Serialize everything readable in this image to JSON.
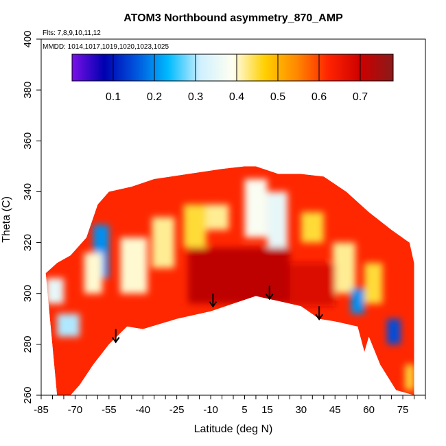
{
  "chart_data": {
    "type": "heatmap",
    "title": "ATOM3 Northbound asymmetry_870_AMP",
    "annotation_lines": [
      "Flts: 7,8,9,10,11,12",
      "MMDD: 1014,1017,1019,1020,1023,1025"
    ],
    "xlabel": "Latitude (deg N)",
    "ylabel": "Theta (C)",
    "xlim": [
      -85,
      85
    ],
    "ylim": [
      260,
      400
    ],
    "x_tick_labels": [
      "-85",
      "-70",
      "-55",
      "-40",
      "-25",
      "-10",
      "5",
      "15",
      "30",
      "45",
      "60",
      "75"
    ],
    "x_tick_values": [
      -85,
      -70,
      -55,
      -40,
      -25,
      -10,
      5,
      15,
      30,
      45,
      60,
      75
    ],
    "y_tick_values": [
      260,
      280,
      300,
      320,
      340,
      360,
      380,
      400
    ],
    "y_tick_labels": [
      "260",
      "280",
      "300",
      "320",
      "340",
      "360",
      "380",
      "400"
    ],
    "colorbar": {
      "range": [
        0.0,
        0.78
      ],
      "tick_values": [
        0.1,
        0.2,
        0.3,
        0.4,
        0.5,
        0.6,
        0.7
      ],
      "tick_labels": [
        "0.1",
        "0.2",
        "0.3",
        "0.4",
        "0.5",
        "0.6",
        "0.7"
      ],
      "colors": [
        "#7a10e8",
        "#0000b0",
        "#0055dd",
        "#00bbff",
        "#d0f0ff",
        "#fffff0",
        "#ffd000",
        "#ff8800",
        "#ff2200",
        "#cc0000",
        "#8b1a1a"
      ]
    },
    "upper_boundary": [
      [
        -83,
        308
      ],
      [
        -78,
        312
      ],
      [
        -72,
        315
      ],
      [
        -65,
        322
      ],
      [
        -60,
        335
      ],
      [
        -55,
        340
      ],
      [
        -45,
        342
      ],
      [
        -35,
        345
      ],
      [
        -20,
        347
      ],
      [
        -5,
        349
      ],
      [
        5,
        350
      ],
      [
        10,
        350
      ],
      [
        20,
        347
      ],
      [
        30,
        347
      ],
      [
        40,
        346
      ],
      [
        50,
        340
      ],
      [
        60,
        332
      ],
      [
        70,
        325
      ],
      [
        78,
        320
      ],
      [
        80,
        312
      ]
    ],
    "lower_boundary": [
      [
        80,
        260
      ],
      [
        72,
        262
      ],
      [
        65,
        272
      ],
      [
        60,
        283
      ],
      [
        58,
        277
      ],
      [
        55,
        287
      ],
      [
        45,
        289
      ],
      [
        38,
        290
      ],
      [
        30,
        295
      ],
      [
        20,
        297
      ],
      [
        10,
        299
      ],
      [
        0,
        296
      ],
      [
        -10,
        293
      ],
      [
        -25,
        290
      ],
      [
        -40,
        286
      ],
      [
        -47,
        287
      ],
      [
        -55,
        280
      ],
      [
        -62,
        272
      ],
      [
        -68,
        264
      ],
      [
        -72,
        260
      ],
      [
        -78,
        260
      ]
    ],
    "regions": [
      {
        "x": [
          -83,
          -75
        ],
        "y": [
          296,
          306
        ],
        "value": 0.35
      },
      {
        "x": [
          -78,
          -68
        ],
        "y": [
          283,
          292
        ],
        "value": 0.3
      },
      {
        "x": [
          -62,
          -55
        ],
        "y": [
          306,
          327
        ],
        "value": 0.2
      },
      {
        "x": [
          -66,
          -58
        ],
        "y": [
          300,
          316
        ],
        "value": 0.4
      },
      {
        "x": [
          -50,
          -38
        ],
        "y": [
          300,
          322
        ],
        "value": 0.4
      },
      {
        "x": [
          -36,
          -26
        ],
        "y": [
          310,
          330
        ],
        "value": 0.42
      },
      {
        "x": [
          -22,
          -12
        ],
        "y": [
          318,
          335
        ],
        "value": 0.45
      },
      {
        "x": [
          -12,
          -2
        ],
        "y": [
          325,
          335
        ],
        "value": 0.42
      },
      {
        "x": [
          5,
          15
        ],
        "y": [
          322,
          345
        ],
        "value": 0.38
      },
      {
        "x": [
          15,
          24
        ],
        "y": [
          312,
          340
        ],
        "value": 0.35
      },
      {
        "x": [
          30,
          40
        ],
        "y": [
          320,
          332
        ],
        "value": 0.45
      },
      {
        "x": [
          44,
          54
        ],
        "y": [
          300,
          320
        ],
        "value": 0.42
      },
      {
        "x": [
          52,
          58
        ],
        "y": [
          292,
          302
        ],
        "value": 0.2
      },
      {
        "x": [
          58,
          66
        ],
        "y": [
          296,
          312
        ],
        "value": 0.45
      },
      {
        "x": [
          68,
          74
        ],
        "y": [
          280,
          290
        ],
        "value": 0.15
      },
      {
        "x": [
          76,
          80
        ],
        "y": [
          262,
          272
        ],
        "value": 0.45
      },
      {
        "x": [
          -20,
          25
        ],
        "y": [
          296,
          318
        ],
        "value": 0.72
      },
      {
        "x": [
          25,
          45
        ],
        "y": [
          295,
          312
        ],
        "value": 0.68
      }
    ],
    "arrows": [
      [
        -52,
        286
      ],
      [
        -9,
        300
      ],
      [
        16,
        303
      ],
      [
        38,
        295
      ]
    ]
  }
}
